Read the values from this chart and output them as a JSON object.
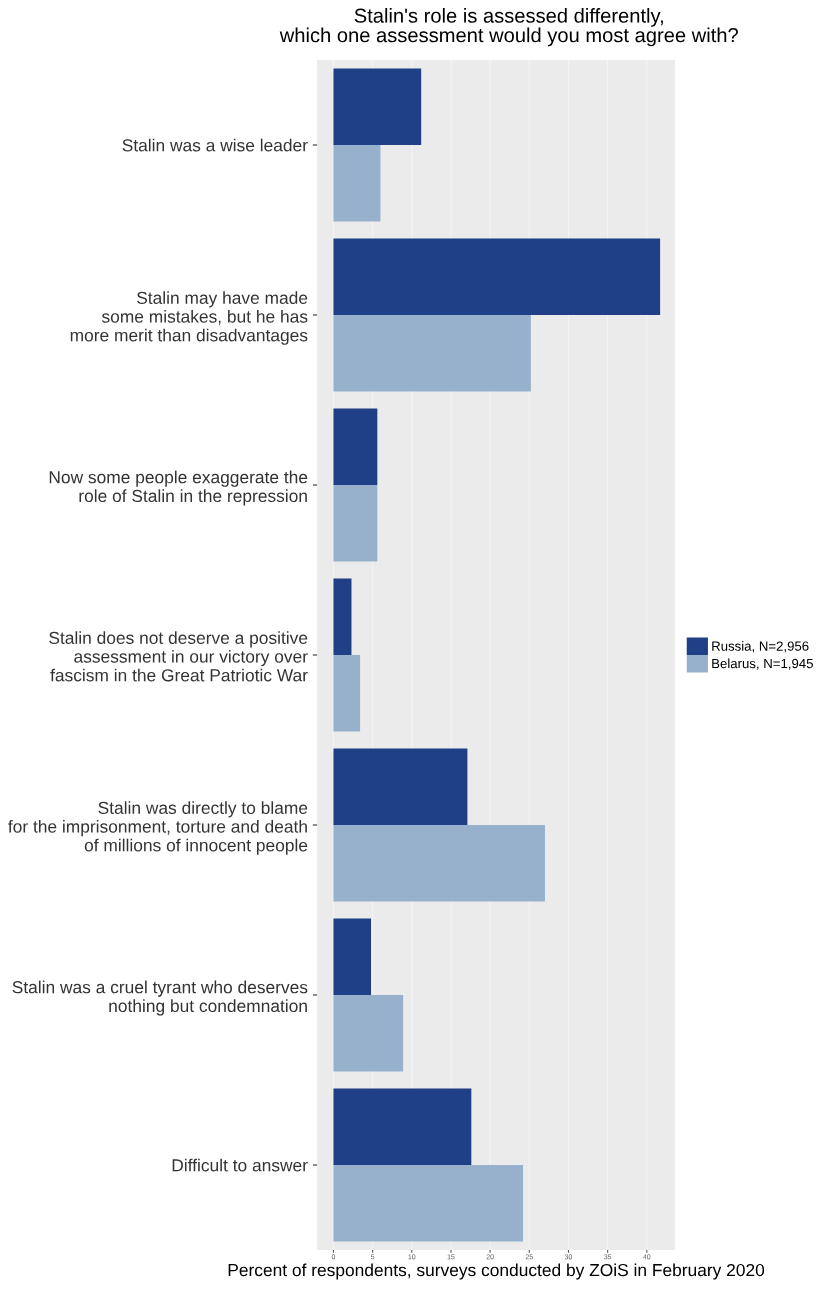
{
  "chart_data": {
    "type": "bar",
    "orientation": "horizontal",
    "title": "Stalin's role is assessed differently,\nwhich one assessment would you most agree with?",
    "xlabel": "Percent of respondents, surveys conducted by ZOiS in February 2020",
    "categories": [
      "Stalin was a wise leader",
      "Stalin may have made\nsome mistakes, but he has\nmore merit than disadvantages",
      "Now some people exaggerate the\nrole of Stalin in the repression",
      "Stalin does not deserve a positive\nassessment in our victory over\nfascism in the Great Patriotic War",
      "Stalin was directly to blame\nfor the imprisonment, torture and death\nof millions of innocent people",
      "Stalin was a cruel tyrant who deserves\nnothing but condemnation",
      "Difficult to answer"
    ],
    "series": [
      {
        "name": "Russia, N=2,956",
        "color": "#1f3f87",
        "values": [
          11.2,
          41.7,
          5.6,
          2.3,
          17.1,
          4.8,
          17.6
        ]
      },
      {
        "name": "Belarus, N=1,945",
        "color": "#97b1cc",
        "values": [
          6.0,
          25.2,
          5.6,
          3.4,
          27.0,
          8.9,
          24.2
        ]
      }
    ],
    "xlim": [
      -2.1,
      43.6
    ],
    "xticks": [
      0,
      5,
      10,
      15,
      20,
      25,
      30,
      35,
      40
    ],
    "grid": "x",
    "legend": "right"
  }
}
